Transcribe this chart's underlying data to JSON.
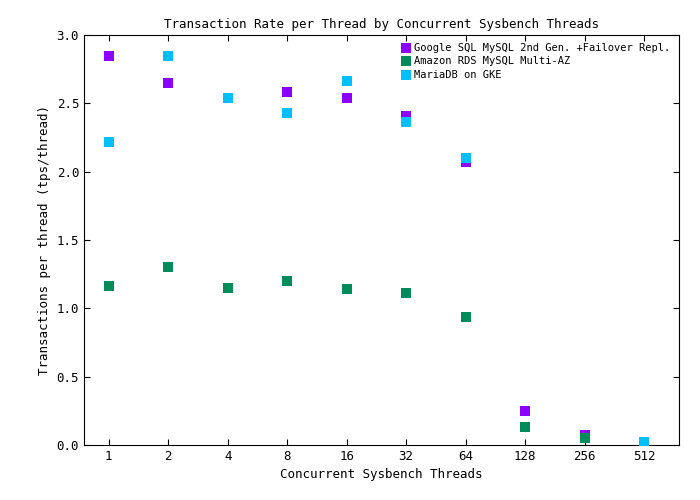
{
  "title": "Transaction Rate per Thread by Concurrent Sysbench Threads",
  "xlabel": "Concurrent Sysbench Threads",
  "ylabel": "Transactions per thread (tps/thread)",
  "series": [
    {
      "label": "Google SQL MySQL 2nd Gen. +Failover Repl.",
      "color": "#8B00FF",
      "x": [
        1,
        2,
        4,
        8,
        16,
        32,
        64,
        128,
        256,
        512
      ],
      "y": [
        2.85,
        2.65,
        null,
        2.58,
        2.54,
        2.41,
        2.07,
        0.25,
        0.07,
        null
      ]
    },
    {
      "label": "Amazon RDS MySQL Multi-AZ",
      "color": "#008B5A",
      "x": [
        1,
        2,
        4,
        8,
        16,
        32,
        64,
        128,
        256,
        512
      ],
      "y": [
        1.16,
        1.3,
        1.15,
        1.2,
        1.14,
        1.11,
        0.94,
        0.13,
        0.05,
        null
      ]
    },
    {
      "label": "MariaDB on GKE",
      "color": "#00BFFF",
      "x": [
        1,
        2,
        4,
        8,
        16,
        32,
        64,
        128,
        256,
        512
      ],
      "y": [
        2.22,
        2.85,
        2.54,
        2.43,
        2.66,
        2.36,
        2.1,
        null,
        null,
        0.02
      ]
    }
  ],
  "x_ticks": [
    1,
    2,
    4,
    8,
    16,
    32,
    64,
    128,
    256,
    512
  ],
  "ylim": [
    0,
    3.0
  ],
  "y_ticks": [
    0,
    0.5,
    1.0,
    1.5,
    2.0,
    2.5,
    3.0
  ],
  "background_color": "#ffffff",
  "marker": "s",
  "marker_size": 7,
  "title_fontsize": 9,
  "axis_label_fontsize": 9,
  "tick_fontsize": 9,
  "legend_fontsize": 7.5
}
